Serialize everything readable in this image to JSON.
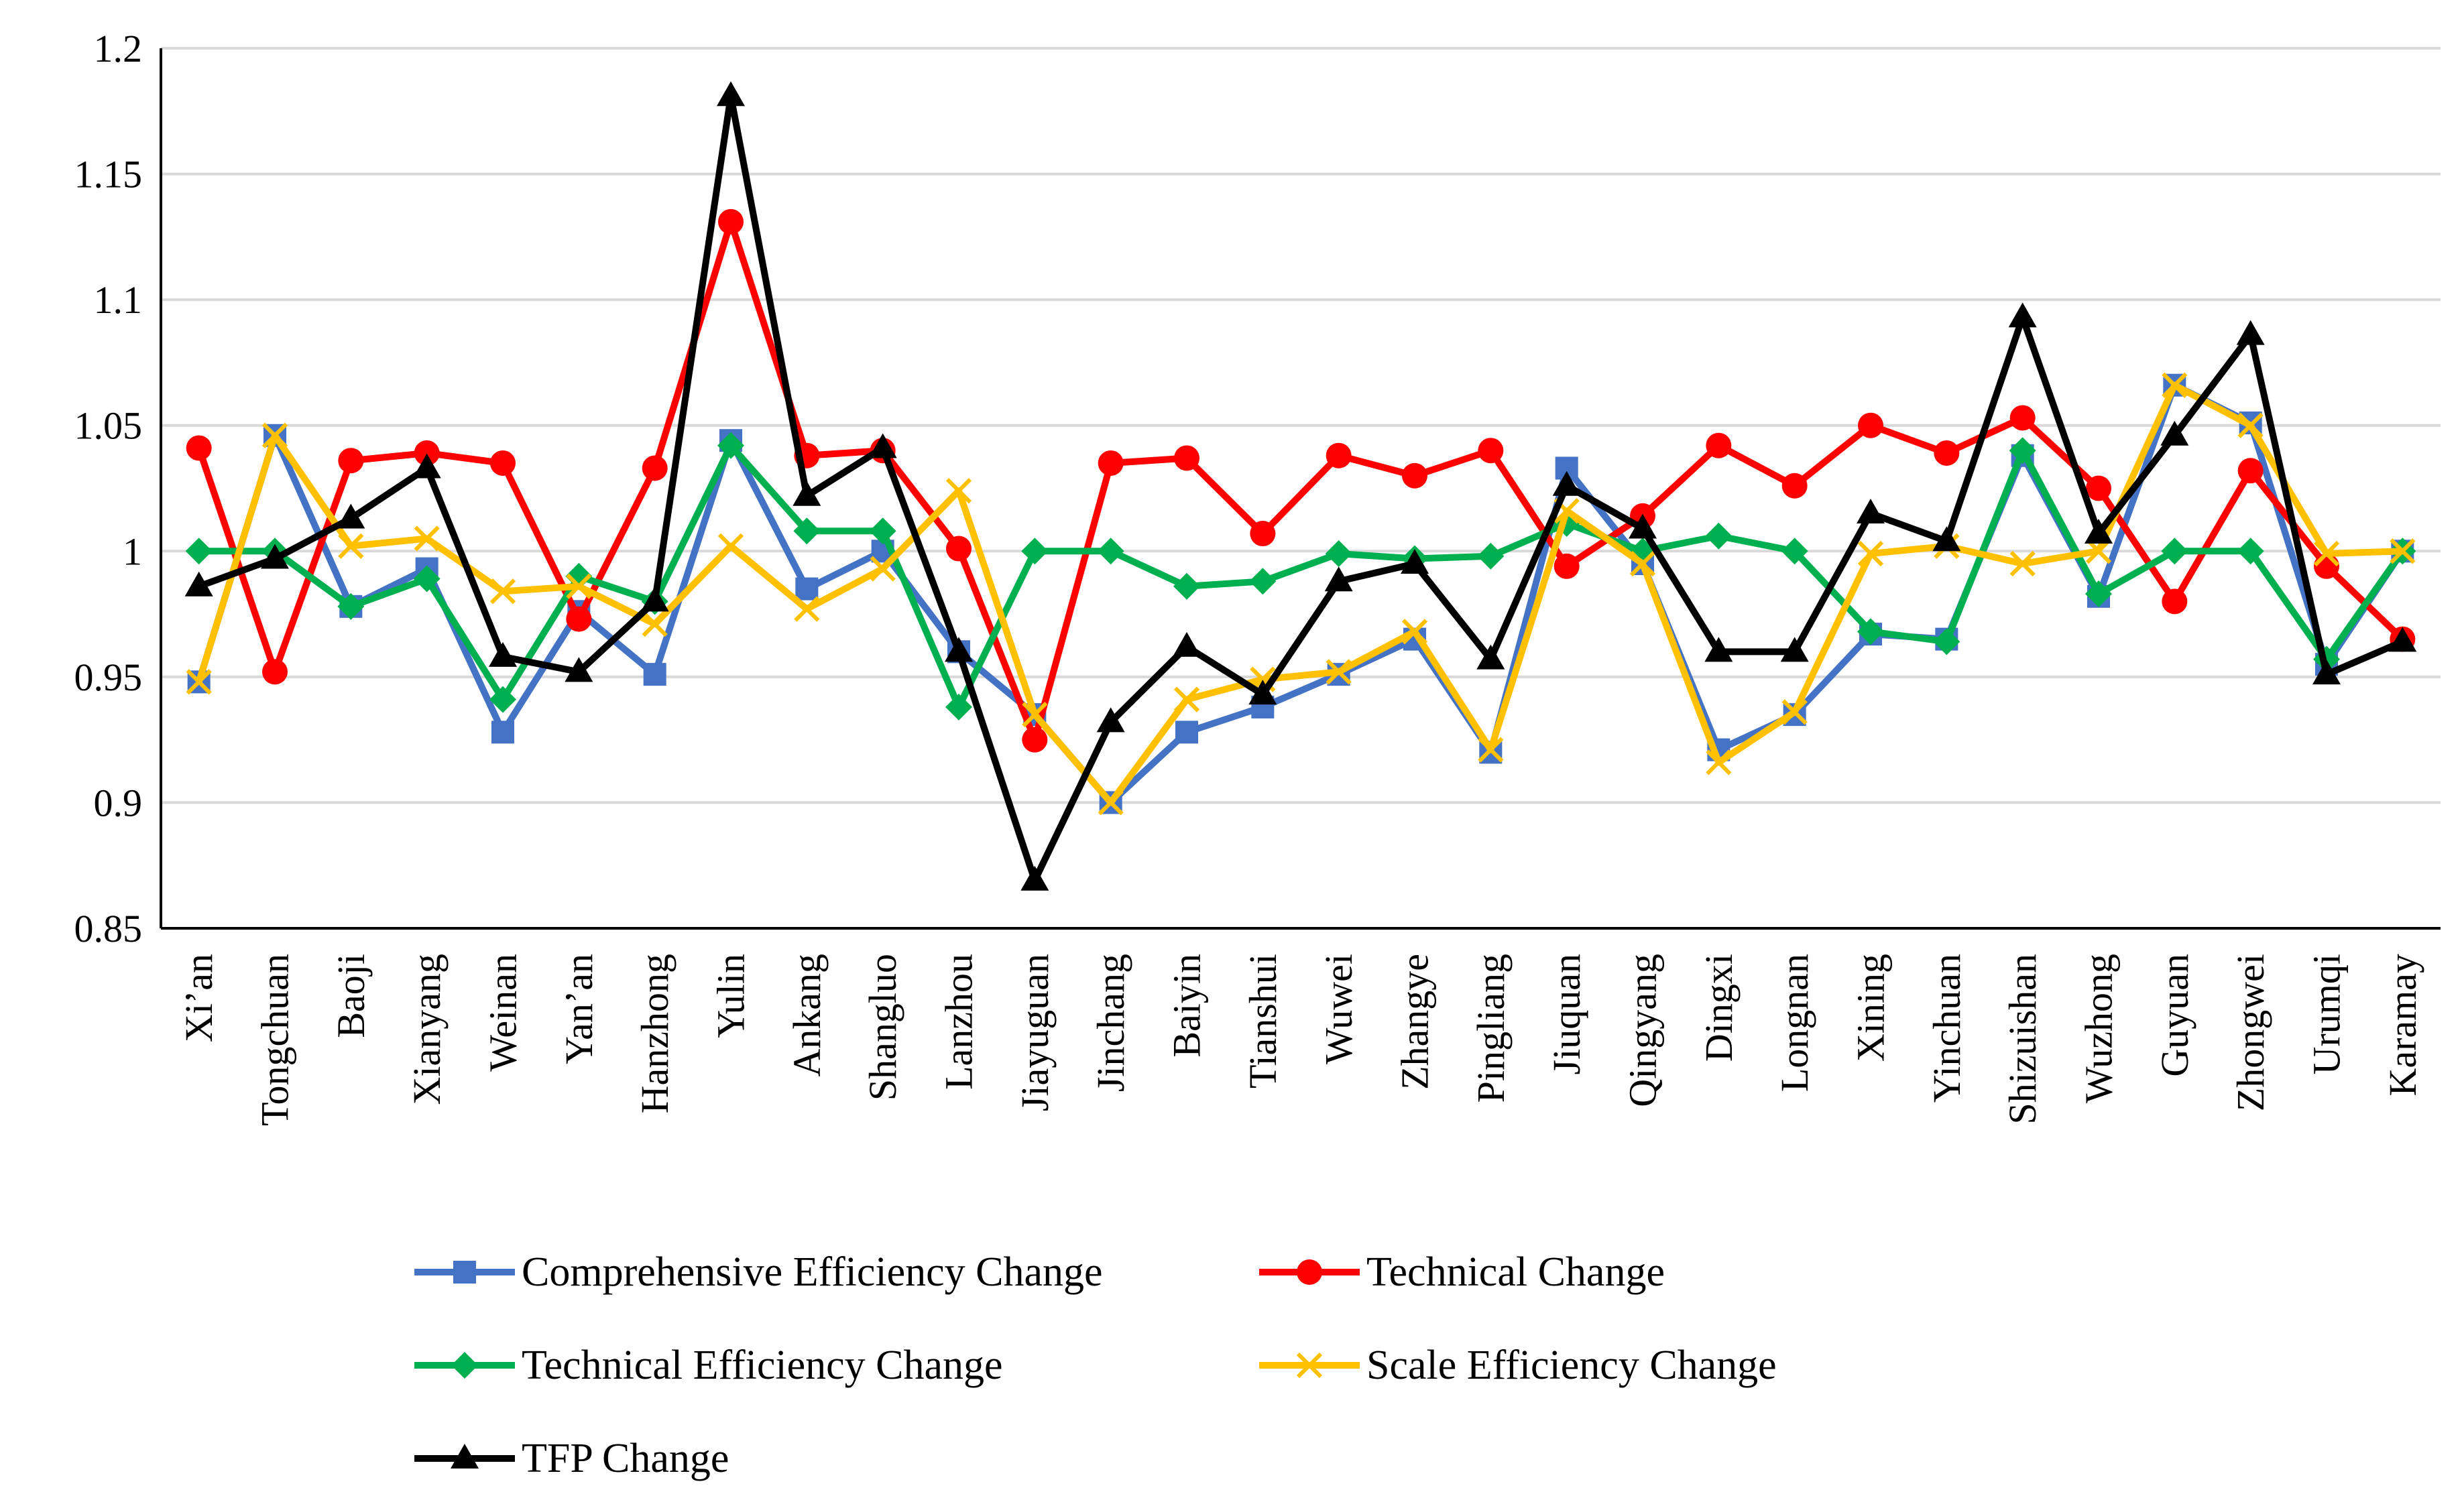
{
  "chart_data": {
    "type": "line",
    "title": "",
    "xlabel": "",
    "ylabel": "",
    "ylim": [
      0.85,
      1.2
    ],
    "yticks": [
      0.85,
      0.9,
      0.95,
      1,
      1.05,
      1.1,
      1.15,
      1.2
    ],
    "ytick_labels": [
      "0.85",
      "0.9",
      "0.95",
      "1",
      "1.05",
      "1.1",
      "1.15",
      "1.2"
    ],
    "grid": true,
    "legend_position": "bottom",
    "categories": [
      "Xi’an",
      "Tongchuan",
      "Baoji",
      "Xianyang",
      "Weinan",
      "Yan’an",
      "Hanzhong",
      "Yulin",
      "Ankang",
      "Shangluo",
      "Lanzhou",
      "Jiayuguan",
      "Jinchang",
      "Baiyin",
      "Tianshui",
      "Wuwei",
      "Zhangye",
      "Pingliang",
      "Jiuquan",
      "Qingyang",
      "Dingxi",
      "Longnan",
      "Xining",
      "Yinchuan",
      "Shizuishan",
      "Wuzhong",
      "Guyuan",
      "Zhongwei",
      "Urumqi",
      "Karamay"
    ],
    "series": [
      {
        "name": "Comprehensive Efficiency Change",
        "color": "#4472c4",
        "marker": "square",
        "values": [
          0.948,
          1.046,
          0.978,
          0.993,
          0.928,
          0.976,
          0.951,
          1.044,
          0.985,
          1.0,
          0.96,
          0.935,
          0.9,
          0.928,
          0.938,
          0.951,
          0.965,
          0.92,
          1.033,
          0.995,
          0.921,
          0.935,
          0.967,
          0.965,
          1.038,
          0.982,
          1.066,
          1.051,
          0.955,
          1.0
        ]
      },
      {
        "name": "Technical Change",
        "color": "#ff0000",
        "marker": "circle",
        "values": [
          1.041,
          0.952,
          1.036,
          1.039,
          1.035,
          0.973,
          1.033,
          1.131,
          1.038,
          1.04,
          1.001,
          0.925,
          1.035,
          1.037,
          1.007,
          1.038,
          1.03,
          1.04,
          0.994,
          1.014,
          1.042,
          1.026,
          1.05,
          1.039,
          1.053,
          1.025,
          0.98,
          1.032,
          0.994,
          0.965
        ]
      },
      {
        "name": "Technical Efficiency Change",
        "color": "#00b050",
        "marker": "diamond",
        "values": [
          1.0,
          1.0,
          0.978,
          0.989,
          0.941,
          0.99,
          0.98,
          1.042,
          1.008,
          1.008,
          0.938,
          1.0,
          1.0,
          0.986,
          0.988,
          0.999,
          0.997,
          0.998,
          1.011,
          1.0,
          1.006,
          1.0,
          0.968,
          0.964,
          1.04,
          0.983,
          1.0,
          1.0,
          0.957,
          1.0
        ]
      },
      {
        "name": "Scale Efficiency Change",
        "color": "#ffc000",
        "marker": "x",
        "values": [
          0.948,
          1.046,
          1.002,
          1.005,
          0.984,
          0.986,
          0.971,
          1.002,
          0.977,
          0.993,
          1.024,
          0.935,
          0.9,
          0.941,
          0.949,
          0.952,
          0.968,
          0.921,
          1.016,
          0.995,
          0.916,
          0.936,
          0.999,
          1.002,
          0.995,
          1.0,
          1.066,
          1.05,
          0.999,
          1.0
        ]
      },
      {
        "name": "TFP Change",
        "color": "#000000",
        "marker": "triangle",
        "values": [
          0.986,
          0.997,
          1.013,
          1.033,
          0.958,
          0.952,
          0.98,
          1.181,
          1.022,
          1.041,
          0.96,
          0.869,
          0.932,
          0.962,
          0.943,
          0.988,
          0.995,
          0.957,
          1.026,
          1.009,
          0.96,
          0.96,
          1.015,
          1.004,
          1.093,
          1.007,
          1.046,
          1.086,
          0.951,
          0.964
        ]
      }
    ]
  }
}
